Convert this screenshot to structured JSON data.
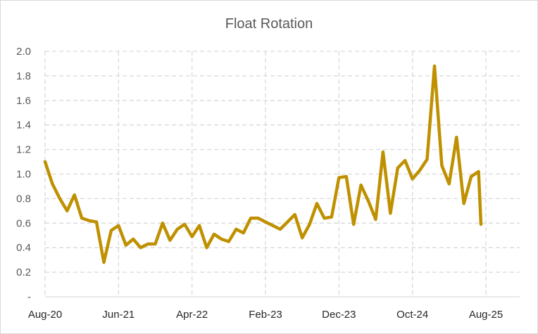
{
  "chart_data": {
    "type": "line",
    "title": "Float Rotation",
    "xlabel": "",
    "ylabel": "",
    "ylim": [
      0,
      2.0
    ],
    "y_ticks": [
      "-",
      "0.2",
      "0.4",
      "0.6",
      "0.8",
      "1.0",
      "1.2",
      "1.4",
      "1.6",
      "1.8",
      "2.0"
    ],
    "x_tick_labels": [
      "Aug-20",
      "Jun-21",
      "Apr-22",
      "Feb-23",
      "Dec-23",
      "Oct-24",
      "Aug-25"
    ],
    "x_range": [
      "Aug-20",
      "Aug-25"
    ],
    "grid": true,
    "line_color": "#BF9000",
    "series": [
      {
        "x": [
          "Aug-20",
          "Sep-20",
          "Oct-20",
          "Nov-20",
          "Dec-20",
          "Jan-21",
          "Feb-21",
          "Mar-21",
          "Apr-21",
          "May-21",
          "Jun-21",
          "Jul-21",
          "Aug-21",
          "Sep-21",
          "Oct-21",
          "Nov-21",
          "Dec-21",
          "Jan-22",
          "Feb-22",
          "Mar-22",
          "Apr-22",
          "May-22",
          "Jun-22",
          "Jul-22",
          "Aug-22",
          "Sep-22",
          "Oct-22",
          "Nov-22",
          "Dec-22",
          "Jan-23",
          "Feb-23",
          "Mar-23",
          "Apr-23",
          "May-23",
          "Jun-23",
          "Jul-23",
          "Aug-23",
          "Sep-23",
          "Oct-23",
          "Nov-23",
          "Dec-23",
          "Jan-24",
          "Feb-24",
          "Mar-24",
          "Apr-24",
          "May-24",
          "Jun-24",
          "Jul-24",
          "Aug-24",
          "Sep-24",
          "Oct-24",
          "Nov-24",
          "Dec-24",
          "Jan-25",
          "Feb-25",
          "Mar-25",
          "Apr-25",
          "May-25",
          "Jun-25",
          "Jul-25"
        ],
        "values": [
          1.1,
          0.92,
          0.8,
          0.7,
          0.83,
          0.64,
          0.62,
          0.61,
          0.28,
          0.54,
          0.58,
          0.42,
          0.47,
          0.4,
          0.43,
          0.43,
          0.6,
          0.46,
          0.55,
          0.59,
          0.49,
          0.58,
          0.4,
          0.51,
          0.47,
          0.45,
          0.55,
          0.52,
          0.64,
          0.64,
          0.61,
          0.58,
          0.55,
          0.61,
          0.67,
          0.48,
          0.59,
          0.76,
          0.64,
          0.65,
          0.97,
          0.98,
          0.59,
          0.91,
          0.78,
          0.63,
          1.18,
          0.68,
          1.05,
          1.11,
          0.96,
          1.03,
          1.12,
          1.88,
          1.07,
          0.92,
          1.3,
          0.76,
          0.98,
          1.02
        ]
      }
    ],
    "series_tail": {
      "x": "Aug-25",
      "value": 0.59
    }
  }
}
